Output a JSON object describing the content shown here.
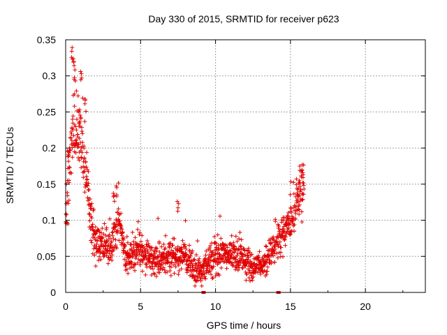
{
  "colors": {
    "series": "#e00000",
    "grid": "#a0a0a0",
    "axis": "#000000"
  },
  "chart_data": {
    "type": "scatter",
    "title": "Day 330 of 2015, SRMTID for receiver p623",
    "xlabel": "GPS time / hours",
    "ylabel": "SRMTID / TECUs",
    "xlim": [
      0,
      24
    ],
    "ylim": [
      0,
      0.35
    ],
    "xticks": [
      0,
      5,
      10,
      15,
      20
    ],
    "xtick_labels": [
      "0",
      "5",
      "10",
      "15",
      "20"
    ],
    "yticks": [
      0,
      0.05,
      0.1,
      0.15,
      0.2,
      0.25,
      0.3,
      0.35
    ],
    "ytick_labels": [
      "0",
      "0.05",
      "0.1",
      "0.15",
      "0.2",
      "0.25",
      "0.3",
      "0.35"
    ],
    "grid": true,
    "marker": "+",
    "series": [
      {
        "name": "SRMTID",
        "note": "approximate trend of ~1500 plotted '+' points",
        "envelope": [
          {
            "x": 0.0,
            "y": 0.1
          },
          {
            "x": 0.2,
            "y": 0.16
          },
          {
            "x": 0.5,
            "y": 0.24
          },
          {
            "x": 0.8,
            "y": 0.22
          },
          {
            "x": 1.0,
            "y": 0.2
          },
          {
            "x": 1.3,
            "y": 0.18
          },
          {
            "x": 1.6,
            "y": 0.11
          },
          {
            "x": 2.0,
            "y": 0.07
          },
          {
            "x": 3.0,
            "y": 0.06
          },
          {
            "x": 3.5,
            "y": 0.1
          },
          {
            "x": 4.0,
            "y": 0.05
          },
          {
            "x": 5.0,
            "y": 0.055
          },
          {
            "x": 6.0,
            "y": 0.045
          },
          {
            "x": 7.0,
            "y": 0.05
          },
          {
            "x": 8.0,
            "y": 0.05
          },
          {
            "x": 8.5,
            "y": 0.035
          },
          {
            "x": 9.0,
            "y": 0.025
          },
          {
            "x": 9.7,
            "y": 0.045
          },
          {
            "x": 10.5,
            "y": 0.055
          },
          {
            "x": 11.5,
            "y": 0.05
          },
          {
            "x": 12.5,
            "y": 0.035
          },
          {
            "x": 13.0,
            "y": 0.04
          },
          {
            "x": 13.5,
            "y": 0.05
          },
          {
            "x": 14.0,
            "y": 0.07
          },
          {
            "x": 14.5,
            "y": 0.08
          },
          {
            "x": 15.0,
            "y": 0.1
          },
          {
            "x": 15.5,
            "y": 0.13
          },
          {
            "x": 15.9,
            "y": 0.15
          }
        ],
        "peaks": [
          {
            "x": 0.45,
            "y": 0.34
          },
          {
            "x": 0.55,
            "y": 0.33
          },
          {
            "x": 0.6,
            "y": 0.31
          },
          {
            "x": 1.05,
            "y": 0.31
          },
          {
            "x": 1.3,
            "y": 0.27
          },
          {
            "x": 0.9,
            "y": 0.255
          },
          {
            "x": 0.2,
            "y": 0.2
          },
          {
            "x": 3.4,
            "y": 0.15
          },
          {
            "x": 3.2,
            "y": 0.14
          },
          {
            "x": 7.5,
            "y": 0.13
          },
          {
            "x": 15.8,
            "y": 0.18
          },
          {
            "x": 15.6,
            "y": 0.17
          }
        ],
        "markers_at_zero": [
          9.2,
          14.2
        ]
      }
    ]
  }
}
